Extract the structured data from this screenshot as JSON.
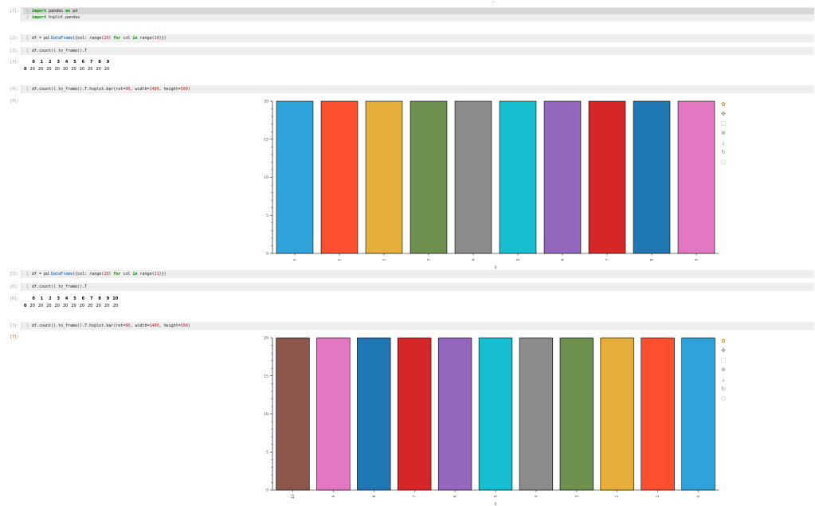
{
  "cells": [
    {
      "prompt": "[1]:",
      "lines": [
        [
          {
            "t": "import",
            "c": "kw"
          },
          {
            "t": " pandas "
          },
          {
            "t": "as",
            "c": "kw"
          },
          {
            "t": " pd"
          }
        ],
        [
          {
            "t": "import",
            "c": "kw"
          },
          {
            "t": " hvplot.pandas"
          }
        ]
      ]
    },
    {
      "prompt": "[2]:",
      "lines": [
        [
          {
            "t": "df = pd."
          },
          {
            "t": "DataFrame",
            "c": "fn"
          },
          {
            "t": "({col: range("
          },
          {
            "t": "20",
            "c": "str"
          },
          {
            "t": ") "
          },
          {
            "t": "for",
            "c": "kw"
          },
          {
            "t": " col "
          },
          {
            "t": "in",
            "c": "kw"
          },
          {
            "t": " range("
          },
          {
            "t": "10",
            "c": "str"
          },
          {
            "t": ")})"
          }
        ]
      ]
    },
    {
      "prompt": "[3]:",
      "lines": [
        [
          {
            "t": "df.count().to_frame().T"
          }
        ]
      ]
    },
    {
      "prompt": "[4]:",
      "lines": [
        [
          {
            "t": "df.count().to_frame().T.hvplot.bar(rot="
          },
          {
            "t": "90",
            "c": "str"
          },
          {
            "t": ", width="
          },
          {
            "t": "1400",
            "c": "str"
          },
          {
            "t": ", height="
          },
          {
            "t": "500",
            "c": "str"
          },
          {
            "t": ")"
          }
        ]
      ]
    },
    {
      "prompt": "[5]:",
      "lines": [
        [
          {
            "t": "df = pd."
          },
          {
            "t": "DataFrame",
            "c": "fn"
          },
          {
            "t": "({col: range("
          },
          {
            "t": "20",
            "c": "str"
          },
          {
            "t": ") "
          },
          {
            "t": "for",
            "c": "kw"
          },
          {
            "t": " col "
          },
          {
            "t": "in",
            "c": "kw"
          },
          {
            "t": " range("
          },
          {
            "t": "11",
            "c": "str"
          },
          {
            "t": ")})"
          }
        ]
      ]
    },
    {
      "prompt": "[6]:",
      "lines": [
        [
          {
            "t": "df.count().to_frame().T"
          }
        ]
      ]
    },
    {
      "prompt": "[7]:",
      "lines": [
        [
          {
            "t": "df.count().to_frame().T.hvplot.bar(rot="
          },
          {
            "t": "90",
            "c": "str"
          },
          {
            "t": ", width="
          },
          {
            "t": "1400",
            "c": "str"
          },
          {
            "t": ", height="
          },
          {
            "t": "500",
            "c": "str"
          },
          {
            "t": ")"
          }
        ]
      ]
    }
  ],
  "outputs": {
    "out3_prompt": "[3]:",
    "out4_prompt": "[4]:",
    "out6_prompt": "[6]:",
    "out7_prompt": "[7]:",
    "table1": {
      "headers": [
        "0",
        "1",
        "2",
        "3",
        "4",
        "5",
        "6",
        "7",
        "8",
        "9"
      ],
      "index": "0",
      "values": [
        "20",
        "20",
        "20",
        "20",
        "20",
        "20",
        "20",
        "20",
        "20",
        "20"
      ]
    },
    "table2": {
      "headers": [
        "0",
        "1",
        "2",
        "3",
        "4",
        "5",
        "6",
        "7",
        "8",
        "9",
        "10"
      ],
      "index": "0",
      "values": [
        "20",
        "20",
        "20",
        "20",
        "20",
        "20",
        "20",
        "20",
        "20",
        "20",
        "20"
      ]
    }
  },
  "toolbar_icons": [
    "bokeh-logo-icon",
    "pan-icon",
    "box-zoom-icon",
    "wheel-zoom-icon",
    "save-icon",
    "reset-icon",
    "hover-icon"
  ],
  "chart_data": [
    {
      "type": "bar",
      "categories": [
        "0",
        "1",
        "2",
        "3",
        "4",
        "5",
        "6",
        "7",
        "8",
        "9"
      ],
      "values": [
        20,
        20,
        20,
        20,
        20,
        20,
        20,
        20,
        20,
        20
      ],
      "colors": [
        "#30a2da",
        "#fc4f30",
        "#e5ae38",
        "#6d904f",
        "#8b8b8b",
        "#17becf",
        "#9467bd",
        "#d62728",
        "#1f77b4",
        "#e377c2"
      ],
      "yticks": [
        "0",
        "5",
        "10",
        "15",
        "20"
      ],
      "xlabel": "0",
      "ylim": [
        0,
        20
      ]
    },
    {
      "type": "bar",
      "categories": [
        "10",
        "9",
        "8",
        "7",
        "6",
        "5",
        "4",
        "3",
        "2",
        "1",
        "0"
      ],
      "values": [
        20,
        20,
        20,
        20,
        20,
        20,
        20,
        20,
        20,
        20,
        20
      ],
      "colors": [
        "#8c564b",
        "#e377c2",
        "#1f77b4",
        "#d62728",
        "#9467bd",
        "#17becf",
        "#8b8b8b",
        "#6d904f",
        "#e5ae38",
        "#fc4f30",
        "#30a2da"
      ],
      "yticks": [
        "0",
        "5",
        "10",
        "15",
        "20"
      ],
      "xlabel": "0",
      "ylim": [
        0,
        20
      ]
    }
  ]
}
